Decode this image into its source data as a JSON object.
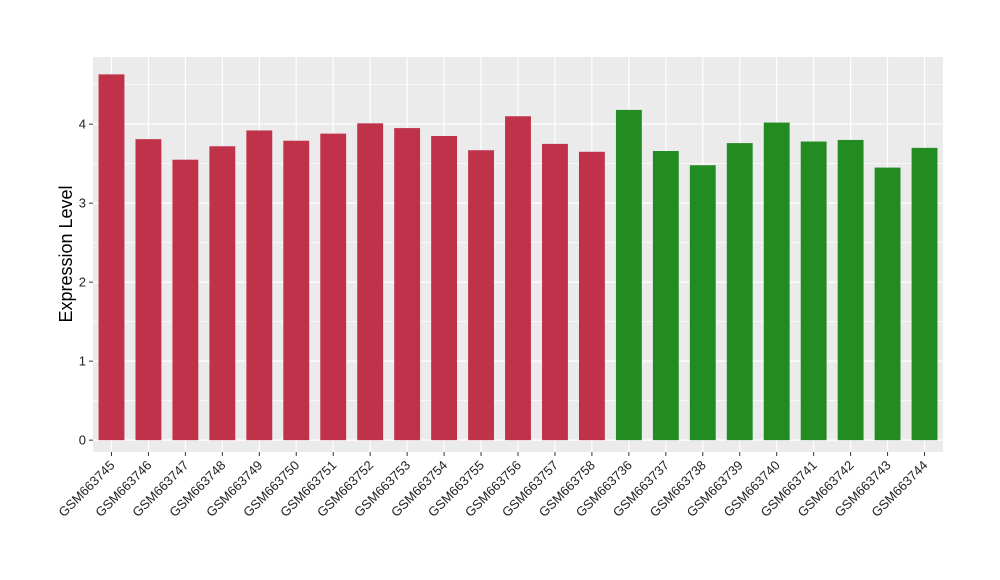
{
  "chart_data": {
    "type": "bar",
    "title": "",
    "xlabel": "",
    "ylabel": "Expression Level",
    "ylim": [
      -0.15,
      4.85
    ],
    "yticks": [
      0,
      1,
      2,
      3,
      4
    ],
    "grid": true,
    "legend": "none",
    "categories": [
      "GSM663745",
      "GSM663746",
      "GSM663747",
      "GSM663748",
      "GSM663749",
      "GSM663750",
      "GSM663751",
      "GSM663752",
      "GSM663753",
      "GSM663754",
      "GSM663755",
      "GSM663756",
      "GSM663757",
      "GSM663758",
      "GSM663736",
      "GSM663737",
      "GSM663738",
      "GSM663739",
      "GSM663740",
      "GSM663741",
      "GSM663742",
      "GSM663743",
      "GSM663744"
    ],
    "values": [
      4.63,
      3.81,
      3.55,
      3.72,
      3.92,
      3.79,
      3.88,
      4.01,
      3.95,
      3.85,
      3.67,
      4.1,
      3.75,
      3.65,
      4.18,
      3.66,
      3.48,
      3.76,
      4.02,
      3.78,
      3.8,
      3.45,
      3.7
    ],
    "bar_colors": [
      "#c0314a",
      "#c0314a",
      "#c0314a",
      "#c0314a",
      "#c0314a",
      "#c0314a",
      "#c0314a",
      "#c0314a",
      "#c0314a",
      "#c0314a",
      "#c0314a",
      "#c0314a",
      "#c0314a",
      "#c0314a",
      "#228b22",
      "#228b22",
      "#228b22",
      "#228b22",
      "#228b22",
      "#228b22",
      "#228b22",
      "#228b22",
      "#228b22"
    ],
    "colors": {
      "panel_background": "#ebebeb",
      "grid": "#ffffff",
      "group_a": "#c0314a",
      "group_b": "#228b22"
    }
  }
}
